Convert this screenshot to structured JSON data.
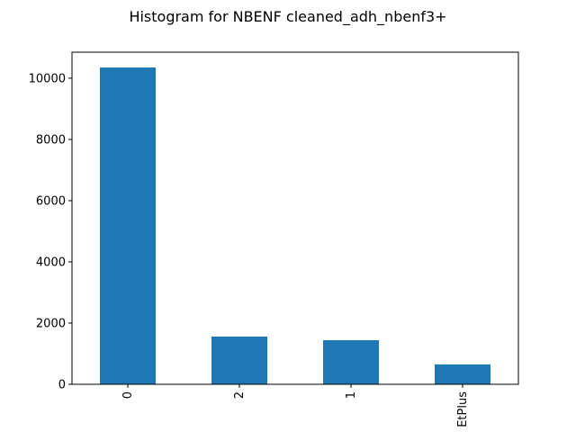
{
  "chart_data": {
    "type": "bar",
    "title": "Histogram for NBENF cleaned_adh_nbenf3+",
    "xlabel": "",
    "ylabel": "",
    "categories": [
      "0",
      "2",
      "1",
      "EtPlus"
    ],
    "values": [
      10350,
      1560,
      1440,
      650
    ],
    "ylim": [
      0,
      10850
    ],
    "yticks": [
      0,
      2000,
      4000,
      6000,
      8000,
      10000
    ],
    "ytick_labels": [
      "0",
      "2000",
      "4000",
      "6000",
      "8000",
      "10000"
    ],
    "grid": false,
    "legend": "none",
    "bar_color": "#1f77b4"
  }
}
